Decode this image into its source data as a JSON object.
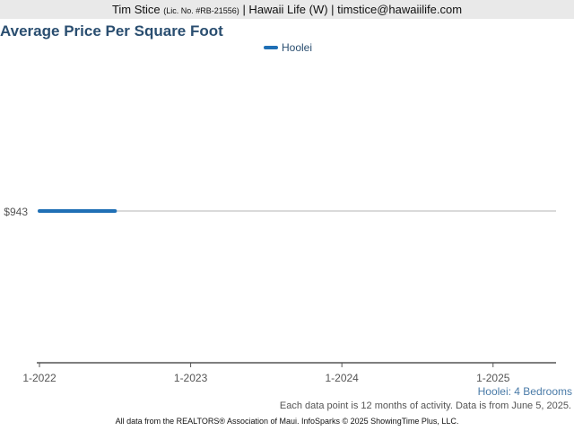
{
  "header": {
    "agent_name": "Tim Stice",
    "license": "(Lic. No. #RB-21556)",
    "rest": "| Hawaii Life (W) | timstice@hawaiilife.com"
  },
  "colors": {
    "series": "#1f6fb5",
    "title": "#2a4e70"
  },
  "footer": {
    "subtitle": "Hoolei: 4 Bedrooms",
    "note": "Each data point is 12 months of activity. Data is from June 5, 2025.",
    "source": "All data from the REALTORS® Association of Maui. InfoSparks © 2025 ShowingTime Plus, LLC."
  },
  "chart_data": {
    "type": "line",
    "title": "Average Price Per Square Foot",
    "xlabel": "",
    "ylabel": "",
    "x_ticks": [
      "1-2022",
      "1-2023",
      "1-2024",
      "1-2025"
    ],
    "x_range": [
      "2022-01",
      "2025-06"
    ],
    "y_ticks": [
      {
        "value": 943,
        "label": "$943"
      }
    ],
    "y_range": [
      0,
      1886
    ],
    "legend_position": "top-center",
    "series": [
      {
        "name": "Hoolei",
        "color": "#1f6fb5",
        "points": [
          {
            "x": "2022-01",
            "y": 943
          },
          {
            "x": "2022-07",
            "y": 943
          }
        ]
      }
    ]
  }
}
